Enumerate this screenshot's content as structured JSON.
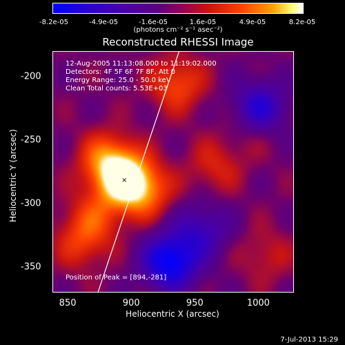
{
  "chart_data": {
    "type": "heatmap",
    "title": "Reconstructed RHESSI Image",
    "xlabel": "Heliocentric X (arcsec)",
    "ylabel": "Heliocentric Y (arcsec)",
    "xlim": [
      838,
      1028
    ],
    "ylim": [
      -370,
      -180
    ],
    "x_ticks": [
      "850",
      "900",
      "950",
      "1000"
    ],
    "y_ticks": [
      "-200",
      "-250",
      "-300",
      "-350"
    ],
    "colorbar": {
      "tick_labels": [
        "-8.2e-05",
        "-4.9e-05",
        "-1.6e-05",
        "1.6e-05",
        "4.9e-05",
        "8.2e-05"
      ],
      "unit_label": "(photons cm⁻² s⁻¹ asec⁻²)",
      "range": [
        -8.2e-05,
        8.2e-05
      ],
      "colormap": [
        "#0000ff",
        "#4b00a8",
        "#5a0080",
        "#cc1010",
        "#ff4000",
        "#ffa000",
        "#ffffff"
      ]
    },
    "annotations": [
      "12-Aug-2005 11:13:08.000 to 11:19:02.000",
      "Detectors: 4F 5F 6F 7F 8F, Att 0",
      "Energy Range: 25.0 - 50.0 keV",
      "Clean     Total counts: 5.53E+03"
    ],
    "peak_label": "Position of Peak = [894,-281]",
    "peak": [
      894,
      -281
    ],
    "limb_line": {
      "points": [
        [
          873,
          -370
        ],
        [
          937,
          -180
        ]
      ],
      "color": "#ffffff"
    },
    "sources": [
      {
        "x": 894,
        "y": -281,
        "intensity": 8.2e-05
      },
      {
        "x": 880,
        "y": -265,
        "intensity": 5e-05
      },
      {
        "x": 910,
        "y": -290,
        "intensity": 4e-05
      },
      {
        "x": 870,
        "y": -310,
        "intensity": 3e-05
      },
      {
        "x": 935,
        "y": -205,
        "intensity": 4e-05
      },
      {
        "x": 860,
        "y": -330,
        "intensity": 3e-05
      },
      {
        "x": 965,
        "y": -270,
        "intensity": 2.5e-05
      },
      {
        "x": 1005,
        "y": -340,
        "intensity": 2e-05
      },
      {
        "x": 995,
        "y": -240,
        "intensity": 1.8e-05
      },
      {
        "x": 930,
        "y": -345,
        "intensity": -8e-05
      },
      {
        "x": 1000,
        "y": -225,
        "intensity": -6e-05
      },
      {
        "x": 955,
        "y": -320,
        "intensity": -4e-05
      }
    ]
  },
  "footer": {
    "timestamp": "7-Jul-2013 15:29"
  }
}
